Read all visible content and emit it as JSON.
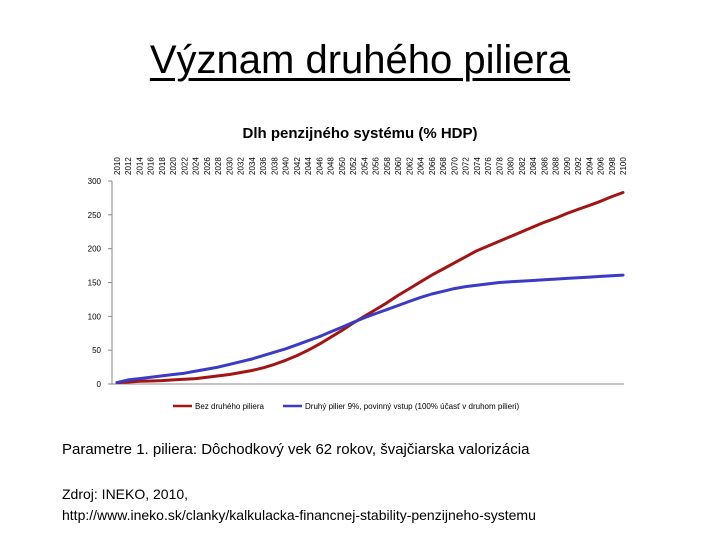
{
  "slide": {
    "title": "Význam druhého piliera",
    "params_text": "Parametre 1. piliera: Dôchodkový vek 62 rokov, švajčiarska valorizácia",
    "source_line1": "Zdroj: INEKO, 2010,",
    "source_line2": "http://www.ineko.sk/clanky/kalkulacka-financnej-stability-penzijneho-systemu"
  },
  "chart_data": {
    "type": "line",
    "title": "Dlh penzijného systému (% HDP)",
    "xlabel": "",
    "ylabel": "",
    "x": [
      2010,
      2012,
      2014,
      2016,
      2018,
      2020,
      2022,
      2024,
      2026,
      2028,
      2030,
      2032,
      2034,
      2036,
      2038,
      2040,
      2042,
      2044,
      2046,
      2048,
      2050,
      2052,
      2054,
      2056,
      2058,
      2060,
      2062,
      2064,
      2066,
      2068,
      2070,
      2072,
      2074,
      2076,
      2078,
      2080,
      2082,
      2084,
      2086,
      2088,
      2090,
      2092,
      2094,
      2096,
      2098,
      2100
    ],
    "ylim": [
      0,
      300
    ],
    "yticks": [
      0,
      50,
      100,
      150,
      200,
      250,
      300
    ],
    "grid": false,
    "legend_position": "bottom",
    "series": [
      {
        "name": "Bez druhého piliera",
        "color": "#a31515",
        "values": [
          2,
          3,
          4,
          4.5,
          5,
          6,
          7,
          8,
          10,
          12,
          14,
          17,
          20,
          24,
          29,
          35,
          42,
          50,
          59,
          69,
          79,
          90,
          100,
          110,
          120,
          131,
          141,
          151,
          161,
          170,
          179,
          188,
          197,
          204,
          211,
          218,
          225,
          232,
          239,
          245,
          252,
          258,
          264,
          270,
          277,
          283
        ]
      },
      {
        "name": "Druhý pilier 9%, povinný vstup (100% účasť v druhom pilieri)",
        "color": "#3b3bc6",
        "values": [
          2,
          6,
          8,
          10,
          12,
          14,
          16,
          19,
          22,
          25,
          29,
          33,
          37,
          42,
          47,
          52,
          58,
          64,
          70,
          77,
          84,
          91,
          98,
          104,
          110,
          116,
          122,
          128,
          133,
          137,
          141,
          144,
          146,
          148,
          150,
          151,
          152,
          153,
          154,
          155,
          156,
          157,
          158,
          159,
          160,
          161
        ]
      }
    ]
  }
}
